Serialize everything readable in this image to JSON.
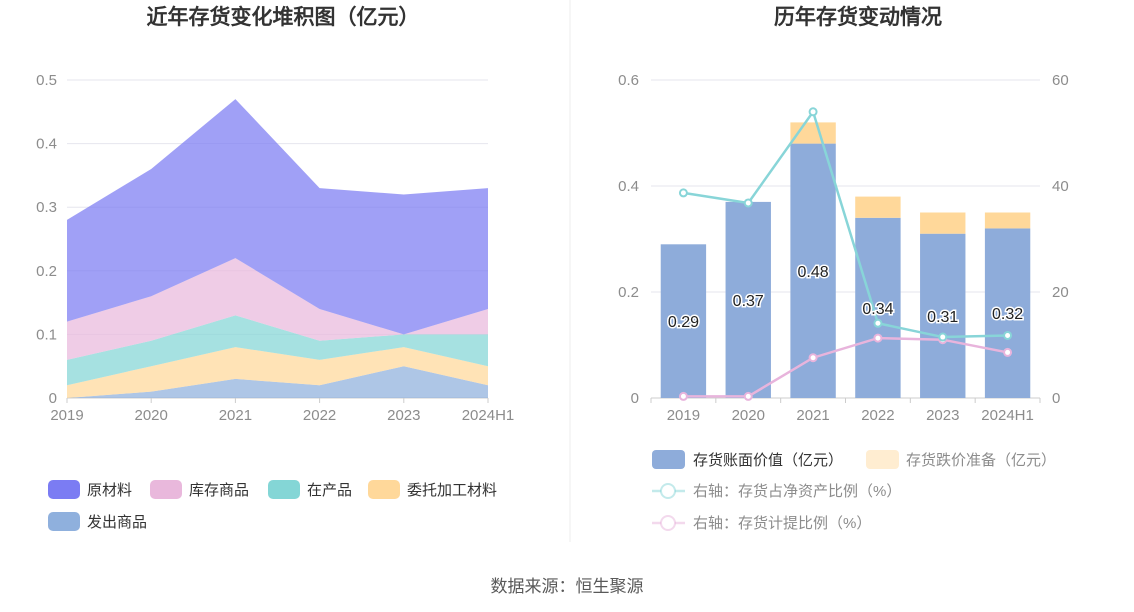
{
  "colors": {
    "raw_materials": "#7b7cf3",
    "goods_in_stock": "#e9b8dc",
    "wip": "#84d6d6",
    "outsourced": "#ffd89a",
    "goods_shipped": "#8fb0dd",
    "book_value": "#8eacda",
    "impairment": "#ffd89a",
    "ratio_net_assets": "#88d5d8",
    "impairment_ratio": "#e8b4dc"
  },
  "chart_data": [
    {
      "type": "area",
      "title": "近年存货变化堆积图（亿元）",
      "x": [
        "2019",
        "2020",
        "2021",
        "2022",
        "2023",
        "2024H1"
      ],
      "ylim": [
        0,
        0.5
      ],
      "yticks": [
        "0",
        "0.1",
        "0.2",
        "0.3",
        "0.4",
        "0.5"
      ],
      "stacked": true,
      "grid": true,
      "legend_position": "bottom",
      "series": [
        {
          "name": "发出商品",
          "color_key": "goods_shipped",
          "values": [
            0,
            0.01,
            0.03,
            0.02,
            0.05,
            0.02
          ]
        },
        {
          "name": "委托加工材料",
          "color_key": "outsourced",
          "values": [
            0.02,
            0.04,
            0.05,
            0.04,
            0.03,
            0.03
          ]
        },
        {
          "name": "在产品",
          "color_key": "wip",
          "values": [
            0.04,
            0.04,
            0.05,
            0.03,
            0.02,
            0.05
          ]
        },
        {
          "name": "库存商品",
          "color_key": "goods_in_stock",
          "values": [
            0.06,
            0.07,
            0.09,
            0.05,
            0.0,
            0.04
          ]
        },
        {
          "name": "原材料",
          "color_key": "raw_materials",
          "values": [
            0.16,
            0.2,
            0.25,
            0.19,
            0.22,
            0.19
          ]
        }
      ],
      "legend": [
        "原材料",
        "库存商品",
        "在产品",
        "委托加工材料",
        "发出商品"
      ]
    },
    {
      "type": "bar",
      "title": "历年存货变动情况",
      "categories": [
        "2019",
        "2020",
        "2021",
        "2022",
        "2023",
        "2024H1"
      ],
      "ylim": [
        0,
        0.6
      ],
      "yticks": [
        "0",
        "0.2",
        "0.4",
        "0.6"
      ],
      "y2lim": [
        0,
        60
      ],
      "y2ticks": [
        "0",
        "20",
        "40",
        "60"
      ],
      "stacked": true,
      "grid": true,
      "legend_position": "bottom",
      "series": [
        {
          "name": "存货账面价值（亿元）",
          "kind": "bar",
          "color_key": "book_value",
          "values": [
            0.29,
            0.37,
            0.48,
            0.34,
            0.31,
            0.32
          ],
          "labels": [
            "0.29",
            "0.37",
            "0.48",
            "0.34",
            "0.31",
            "0.32"
          ]
        },
        {
          "name": "存货跌价准备（亿元）",
          "kind": "bar",
          "color_key": "impairment",
          "values": [
            0,
            0,
            0.04,
            0.04,
            0.04,
            0.03
          ]
        },
        {
          "name": "右轴：存货占净资产比例（%）",
          "kind": "line",
          "axis": "right",
          "color_key": "ratio_net_assets",
          "values": [
            38.7,
            36.8,
            54.0,
            14.1,
            11.5,
            11.8
          ]
        },
        {
          "name": "右轴：存货计提比例（%）",
          "kind": "line",
          "axis": "right",
          "color_key": "impairment_ratio",
          "values": [
            0.3,
            0.3,
            7.6,
            11.3,
            11.0,
            8.6
          ]
        }
      ]
    }
  ],
  "footer": {
    "source": "数据来源：恒生聚源"
  }
}
